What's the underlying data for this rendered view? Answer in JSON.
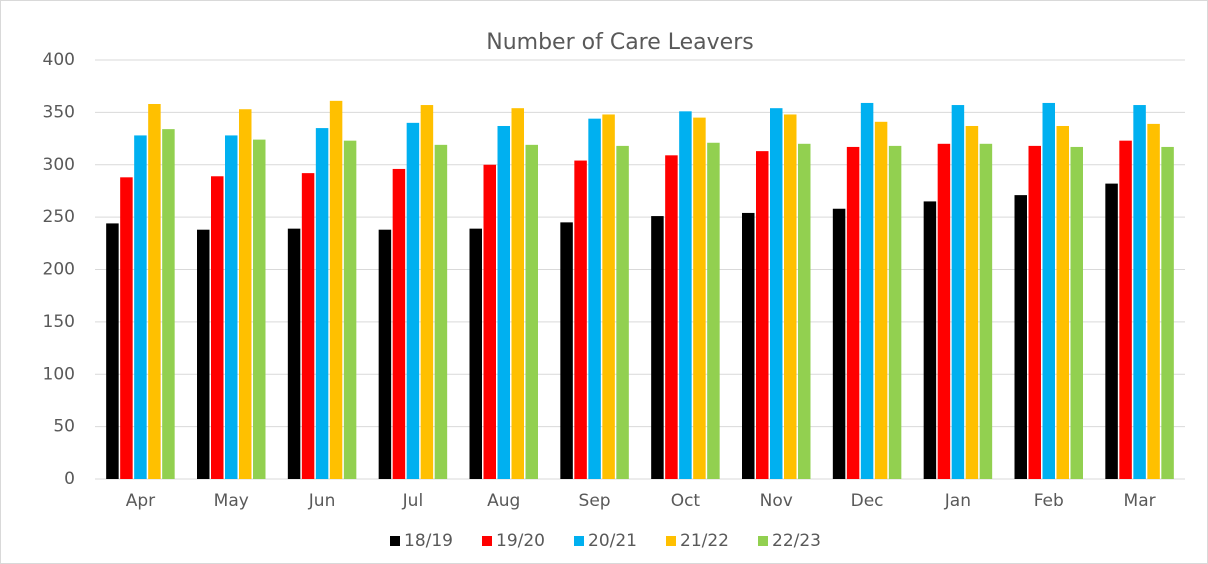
{
  "chart_data": {
    "type": "bar",
    "title": "Number of Care Leavers",
    "categories": [
      "Apr",
      "May",
      "Jun",
      "Jul",
      "Aug",
      "Sep",
      "Oct",
      "Nov",
      "Dec",
      "Jan",
      "Feb",
      "Mar"
    ],
    "series": [
      {
        "name": "18/19",
        "color": "#000000",
        "values": [
          244,
          238,
          239,
          238,
          239,
          245,
          251,
          254,
          258,
          265,
          271,
          282
        ]
      },
      {
        "name": "19/20",
        "color": "#ff0000",
        "values": [
          288,
          289,
          292,
          296,
          300,
          304,
          309,
          313,
          317,
          320,
          318,
          323
        ]
      },
      {
        "name": "20/21",
        "color": "#00b0f0",
        "values": [
          328,
          328,
          335,
          340,
          337,
          344,
          351,
          354,
          359,
          357,
          359,
          357
        ]
      },
      {
        "name": "21/22",
        "color": "#ffc000",
        "values": [
          358,
          353,
          361,
          357,
          354,
          348,
          345,
          348,
          341,
          337,
          337,
          339
        ]
      },
      {
        "name": "22/23",
        "color": "#92d050",
        "values": [
          334,
          324,
          323,
          319,
          319,
          318,
          321,
          320,
          318,
          320,
          317,
          317
        ]
      }
    ],
    "ylim": [
      0,
      400
    ],
    "yticks": [
      0,
      50,
      100,
      150,
      200,
      250,
      300,
      350,
      400
    ],
    "grid": true,
    "legend": "bottom"
  }
}
